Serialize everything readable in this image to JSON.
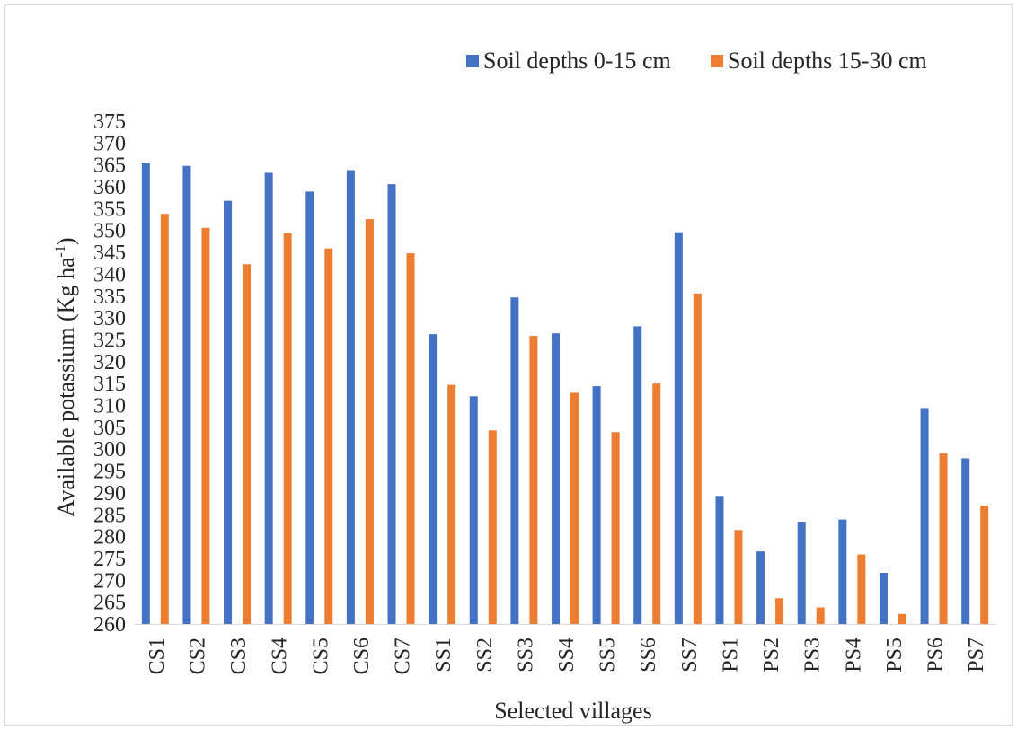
{
  "chart_data": {
    "type": "bar",
    "xlabel": "Selected villages",
    "ylabel": "Available potassium (Kg ha",
    "ylabel_sup": "-1",
    "ylabel_end": ")",
    "ylim": [
      260,
      375
    ],
    "ytick_step": 5,
    "grid": false,
    "legend_position": "top-right",
    "categories": [
      "CS1",
      "CS2",
      "CS3",
      "CS4",
      "CS5",
      "CS6",
      "CS7",
      "SS1",
      "SS2",
      "SS3",
      "SS4",
      "SS5",
      "SS6",
      "SS7",
      "PS1",
      "PS2",
      "PS3",
      "PS4",
      "PS5",
      "PS6",
      "PS7"
    ],
    "series": [
      {
        "name": "Soil depths 0-15 cm",
        "color": "#4472C4",
        "values": [
          365.5,
          364.8,
          356.8,
          363.2,
          358.9,
          363.8,
          360.6,
          326.3,
          312.1,
          334.7,
          326.5,
          314.4,
          328.1,
          349.6,
          289.3,
          276.6,
          283.4,
          283.9,
          271.7,
          309.4,
          297.9
        ]
      },
      {
        "name": "Soil depths 15-30 cm",
        "color": "#ED7D31",
        "values": [
          353.8,
          350.6,
          342.3,
          349.4,
          345.9,
          352.6,
          344.8,
          314.7,
          304.3,
          325.9,
          312.9,
          303.9,
          315.0,
          335.6,
          281.5,
          265.9,
          263.8,
          275.9,
          262.3,
          299.0,
          287.1
        ]
      }
    ]
  }
}
